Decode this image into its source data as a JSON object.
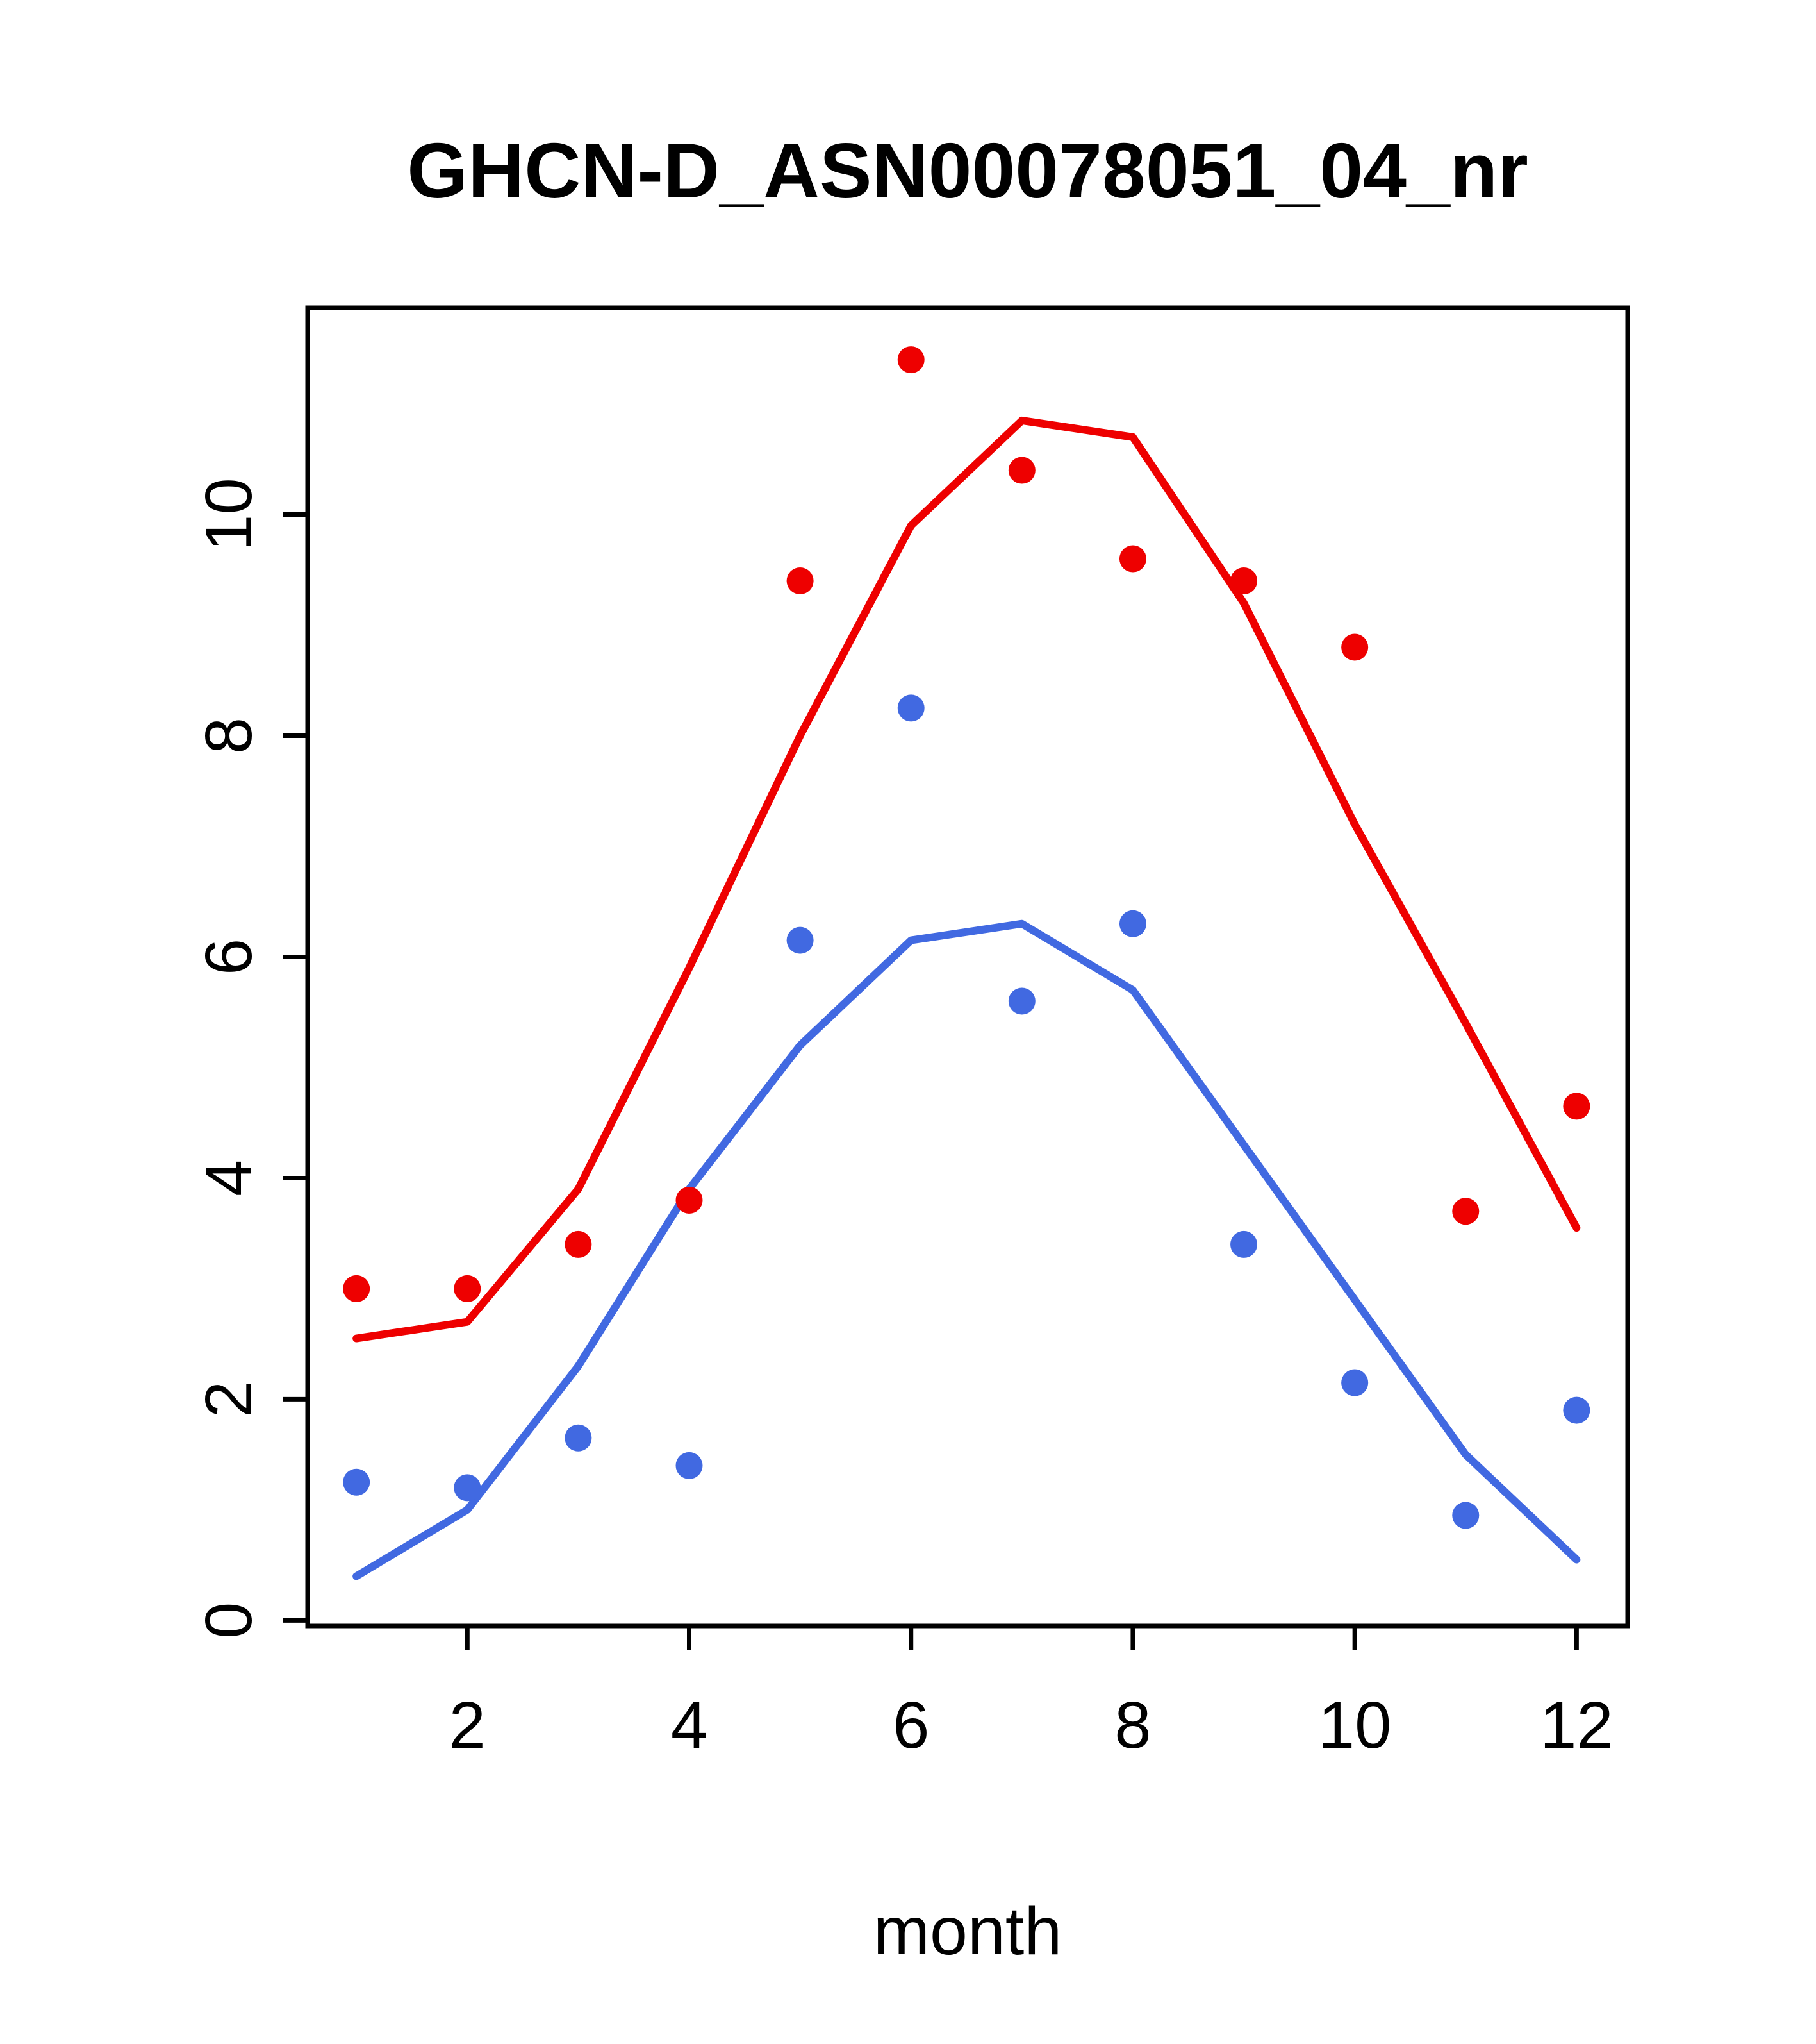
{
  "page": {
    "background": "#ffffff"
  },
  "chart_data": {
    "type": "line",
    "title": "GHCN-D_ASN00078051_04_nr",
    "xlabel": "month",
    "ylabel": "",
    "x": [
      1,
      2,
      3,
      4,
      5,
      6,
      7,
      8,
      9,
      10,
      11,
      12
    ],
    "xlim": [
      0.56,
      12.46
    ],
    "ylim": [
      -0.05,
      11.87
    ],
    "xticks": [
      2,
      4,
      6,
      8,
      10,
      12
    ],
    "yticks": [
      0,
      2,
      4,
      6,
      8,
      10
    ],
    "grid": false,
    "legend_position": "none",
    "colors": {
      "red": "#EE0000",
      "blue": "#4169E1",
      "axis": "#000000"
    },
    "series": [
      {
        "name": "red-line",
        "style": "line",
        "color": "#EE0000",
        "values": [
          2.55,
          2.7,
          3.9,
          5.9,
          8.0,
          9.9,
          10.85,
          10.7,
          9.2,
          7.2,
          5.4,
          3.55
        ]
      },
      {
        "name": "blue-line",
        "style": "line",
        "color": "#4169E1",
        "values": [
          0.4,
          1.0,
          2.3,
          3.9,
          5.2,
          6.15,
          6.3,
          5.7,
          4.3,
          2.9,
          1.5,
          0.55
        ]
      },
      {
        "name": "red-points",
        "style": "points",
        "color": "#EE0000",
        "values": [
          3.0,
          3.0,
          3.4,
          3.8,
          9.4,
          11.4,
          10.4,
          9.6,
          9.4,
          8.8,
          3.7,
          4.65
        ]
      },
      {
        "name": "blue-points",
        "style": "points",
        "color": "#4169E1",
        "values": [
          1.25,
          1.2,
          1.65,
          1.4,
          6.15,
          8.25,
          5.6,
          6.3,
          3.4,
          2.15,
          0.95,
          1.9
        ]
      }
    ]
  }
}
